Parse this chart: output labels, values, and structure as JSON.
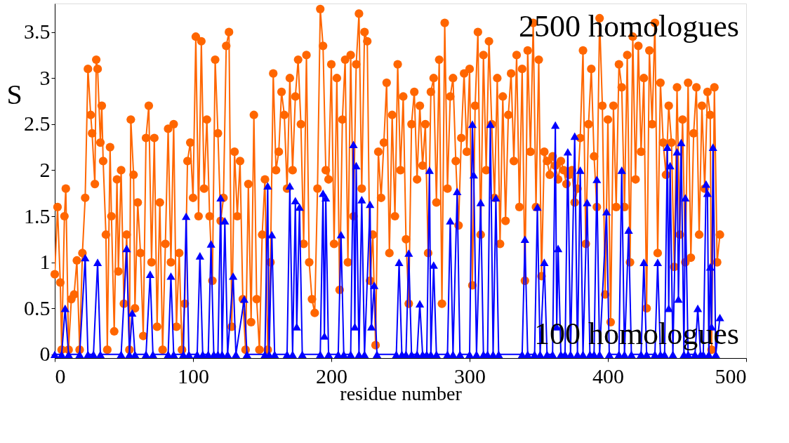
{
  "chart_data": {
    "type": "line",
    "xlabel": "residue number",
    "ylabel": "S",
    "xlim": [
      0,
      500
    ],
    "xticks": [
      0,
      100,
      200,
      300,
      400,
      500
    ],
    "ylim": [
      -0.04,
      3.81
    ],
    "yticks": [
      0,
      0.5,
      1,
      1.5,
      2,
      2.5,
      3,
      3.5
    ],
    "grid": false,
    "line_style": "solid",
    "annotations": [
      "2500 homologues",
      "100 homologues"
    ],
    "series": [
      {
        "color": "#ff6600",
        "marker": "circle",
        "x": [
          0,
          2,
          4,
          5,
          7,
          8,
          10,
          12,
          14,
          16,
          18,
          20,
          22,
          24,
          26,
          27,
          29,
          30,
          31,
          33,
          34,
          35,
          37,
          38,
          40,
          41,
          43,
          45,
          46,
          48,
          50,
          52,
          54,
          55,
          57,
          58,
          60,
          62,
          64,
          66,
          68,
          70,
          72,
          74,
          76,
          78,
          80,
          82,
          84,
          86,
          88,
          90,
          92,
          94,
          96,
          98,
          100,
          102,
          104,
          106,
          108,
          110,
          112,
          114,
          116,
          118,
          120,
          122,
          124,
          126,
          128,
          130,
          132,
          134,
          136,
          138,
          140,
          142,
          144,
          146,
          148,
          150,
          152,
          154,
          156,
          158,
          160,
          162,
          164,
          166,
          168,
          170,
          172,
          174,
          176,
          178,
          180,
          182,
          184,
          186,
          188,
          190,
          192,
          194,
          196,
          198,
          200,
          202,
          204,
          206,
          208,
          210,
          212,
          214,
          216,
          218,
          220,
          222,
          224,
          226,
          228,
          230,
          232,
          234,
          236,
          238,
          240,
          242,
          244,
          246,
          248,
          250,
          252,
          254,
          256,
          258,
          260,
          262,
          264,
          266,
          268,
          270,
          272,
          274,
          276,
          278,
          280,
          282,
          284,
          286,
          288,
          290,
          292,
          294,
          296,
          298,
          300,
          302,
          304,
          306,
          308,
          310,
          312,
          314,
          316,
          318,
          320,
          322,
          324,
          326,
          328,
          330,
          332,
          334,
          336,
          338,
          340,
          342,
          344,
          346,
          348,
          350,
          352,
          354,
          356,
          358,
          360,
          362,
          364,
          366,
          368,
          370,
          372,
          374,
          376,
          378,
          380,
          382,
          384,
          386,
          388,
          390,
          392,
          394,
          396,
          398,
          400,
          402,
          404,
          406,
          408,
          410,
          412,
          414,
          416,
          418,
          420,
          422,
          424,
          426,
          428,
          430,
          432,
          434,
          436,
          438,
          440,
          442,
          444,
          446,
          448,
          450,
          452,
          454,
          456,
          458,
          460,
          462,
          464,
          466,
          468,
          470,
          472,
          474,
          475,
          477,
          479,
          481
        ],
        "values": [
          0.87,
          1.6,
          0.78,
          0.05,
          1.5,
          1.8,
          0.05,
          0.6,
          0.65,
          1.02,
          0.05,
          1.1,
          1.7,
          3.1,
          2.6,
          2.4,
          1.85,
          3.2,
          3.1,
          2.3,
          2.7,
          2.1,
          1.3,
          0.05,
          2.25,
          1.5,
          0.25,
          1.9,
          0.9,
          2.0,
          0.55,
          1.3,
          0.05,
          2.55,
          1.95,
          0.5,
          1.65,
          1.1,
          0.2,
          2.35,
          2.7,
          1.0,
          2.35,
          0.3,
          1.65,
          0.05,
          1.2,
          2.45,
          1.0,
          2.5,
          0.3,
          1.1,
          0.05,
          0.55,
          2.1,
          2.3,
          1.7,
          3.45,
          1.5,
          3.4,
          1.8,
          2.55,
          1.5,
          0.8,
          3.2,
          2.4,
          1.45,
          1.7,
          3.35,
          3.5,
          0.3,
          2.2,
          1.5,
          2.1,
          0.6,
          0.05,
          1.85,
          0.35,
          2.6,
          0.6,
          0.05,
          1.3,
          1.9,
          0.05,
          1.0,
          3.05,
          2.0,
          2.2,
          2.85,
          2.6,
          1.8,
          3.0,
          2.0,
          2.8,
          3.2,
          2.5,
          1.2,
          3.25,
          1.0,
          0.6,
          0.45,
          1.8,
          3.75,
          3.35,
          2.0,
          1.9,
          3.15,
          1.2,
          3.0,
          0.7,
          2.55,
          3.2,
          1.0,
          3.25,
          1.5,
          3.15,
          3.7,
          1.8,
          3.5,
          3.4,
          0.8,
          1.3,
          0.1,
          2.2,
          1.7,
          2.3,
          2.95,
          1.1,
          2.6,
          1.5,
          3.15,
          2.0,
          2.8,
          1.25,
          0.55,
          2.5,
          2.85,
          1.9,
          2.7,
          2.05,
          2.5,
          1.1,
          2.85,
          3.0,
          1.65,
          3.2,
          0.55,
          3.6,
          1.8,
          2.8,
          3.0,
          2.1,
          1.4,
          2.35,
          3.05,
          2.2,
          3.1,
          0.75,
          2.7,
          3.5,
          1.3,
          3.25,
          2.0,
          3.4,
          2.5,
          1.7,
          3.0,
          1.2,
          2.8,
          1.45,
          2.6,
          3.05,
          2.1,
          3.25,
          1.6,
          3.1,
          0.8,
          3.3,
          2.2,
          3.6,
          1.6,
          3.2,
          0.85,
          2.2,
          2.1,
          1.95,
          2.15,
          2.05,
          1.9,
          2.1,
          2.0,
          1.85,
          1.95,
          2.0,
          1.65,
          1.8,
          2.35,
          3.3,
          1.2,
          2.5,
          3.1,
          2.15,
          1.6,
          3.65,
          2.7,
          0.65,
          2.55,
          0.35,
          2.7,
          1.6,
          3.15,
          2.9,
          1.6,
          3.25,
          1.0,
          3.45,
          1.9,
          3.35,
          2.2,
          3.0,
          0.5,
          3.3,
          2.5,
          3.6,
          1.1,
          2.95,
          2.3,
          1.95,
          2.7,
          2.3,
          0.95,
          2.9,
          1.3,
          2.55,
          1.0,
          2.95,
          1.05,
          2.4,
          2.9,
          1.3,
          2.7,
          1.8,
          2.85,
          2.6,
          0.05,
          2.9,
          1.0,
          1.3
        ]
      },
      {
        "color": "#0000ff",
        "marker": "triangle",
        "x": [
          0,
          5,
          7.5,
          10,
          18,
          22,
          24,
          28,
          31,
          33,
          48,
          52,
          54,
          56,
          58,
          66,
          69,
          71,
          82,
          84,
          86,
          93,
          95,
          97,
          103,
          105,
          107,
          111,
          113,
          115,
          118,
          120,
          121,
          123,
          125,
          129,
          131,
          137,
          139,
          152,
          154,
          155,
          157,
          159,
          168,
          170,
          172,
          174,
          175,
          177,
          179,
          192,
          194,
          195,
          196,
          198,
          205,
          207,
          209,
          214,
          216,
          217,
          218,
          220,
          222,
          224,
          228,
          229,
          231,
          233,
          247,
          249,
          251,
          254,
          256,
          258,
          262,
          264,
          266,
          269,
          271,
          272,
          274,
          276,
          284,
          286,
          288,
          291,
          293,
          300,
          302,
          303,
          305,
          308,
          310,
          313,
          315,
          317,
          319,
          321,
          338,
          340,
          342,
          347,
          349,
          351,
          354,
          356,
          360,
          362,
          363,
          364,
          366,
          369,
          371,
          373,
          376,
          378,
          380,
          382,
          385,
          387,
          390,
          392,
          394,
          399,
          401,
          408,
          410,
          412,
          415,
          417,
          424,
          426,
          428,
          434,
          436,
          438,
          441,
          443,
          444,
          445,
          447,
          450,
          451,
          453,
          455,
          456,
          458,
          463,
          465,
          467,
          469,
          471,
          472,
          473,
          474,
          475,
          476,
          478,
          481
        ],
        "values": [
          0,
          0,
          0.5,
          0,
          0,
          1.05,
          0,
          0,
          1.0,
          0,
          0,
          1.15,
          0,
          0.45,
          0,
          0,
          0.87,
          0,
          0,
          0.85,
          0,
          0,
          1.5,
          0,
          0,
          1.07,
          0,
          0,
          1.2,
          0,
          0,
          1.7,
          0,
          1.45,
          0,
          0.85,
          0,
          0.6,
          0,
          0,
          1.83,
          0,
          1.3,
          0,
          0,
          1.83,
          0,
          1.67,
          0.3,
          1.6,
          0,
          0,
          1.75,
          0.2,
          1.7,
          0,
          0,
          1.3,
          0,
          0,
          2.28,
          0.3,
          2.05,
          0,
          1.68,
          0,
          1.63,
          0.3,
          0.75,
          0,
          0,
          1.0,
          0,
          0,
          1.1,
          0,
          0,
          0.55,
          0,
          0,
          2.0,
          0,
          0.97,
          0,
          0,
          1.45,
          0,
          1.77,
          0,
          0,
          2.5,
          1.95,
          0,
          1.65,
          0,
          0,
          2.5,
          0,
          1.7,
          0,
          0,
          1.25,
          0,
          0,
          1.6,
          0,
          1.0,
          0,
          0,
          2.49,
          0.3,
          1.15,
          0,
          0,
          2.2,
          0,
          2.37,
          0,
          2.0,
          0,
          1.65,
          0,
          0,
          1.9,
          0,
          1.55,
          0,
          0,
          2.0,
          0,
          1.35,
          0,
          0,
          1.0,
          0,
          0,
          1.0,
          0,
          0,
          2.25,
          0.5,
          2.05,
          0,
          2.2,
          0.6,
          2.3,
          0,
          1.7,
          0,
          0,
          0.5,
          0,
          0,
          1.85,
          1.75,
          0,
          0.95,
          0.3,
          2.25,
          0,
          0.4
        ]
      }
    ]
  }
}
